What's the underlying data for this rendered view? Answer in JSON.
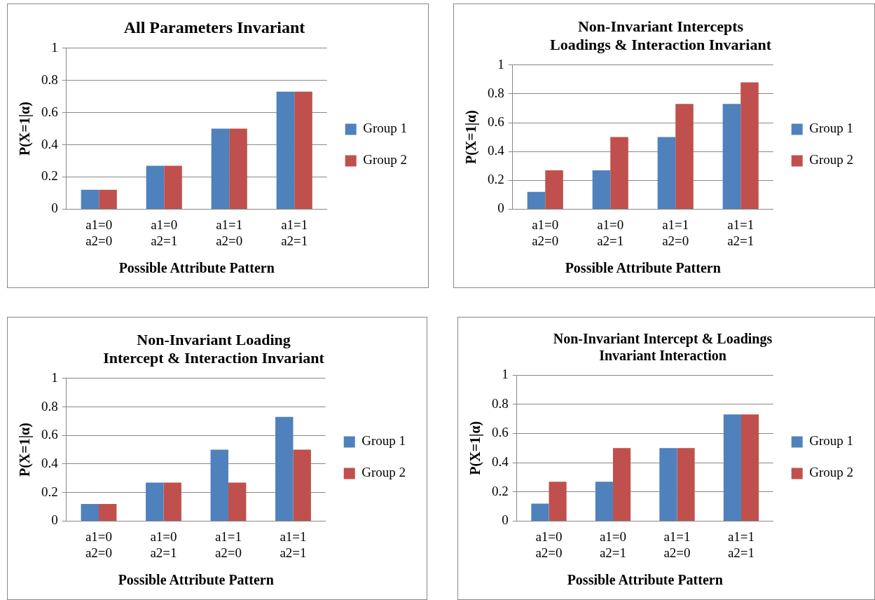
{
  "chart_data": [
    {
      "type": "bar",
      "title": "All Parameters Invariant",
      "xlabel": "Possible Attribute Pattern",
      "ylabel": "P(X=1|α)",
      "categories": [
        "a1=0\na2=0",
        "a1=0\na2=1",
        "a1=1\na2=0",
        "a1=1\na2=1"
      ],
      "series": [
        {
          "name": "Group 1",
          "color": "#4f81bd",
          "values": [
            0.12,
            0.27,
            0.5,
            0.73
          ]
        },
        {
          "name": "Group 2",
          "color": "#c0504d",
          "values": [
            0.12,
            0.27,
            0.5,
            0.73
          ]
        }
      ],
      "ylim": [
        0,
        1
      ],
      "yticks": [
        0,
        0.2,
        0.4,
        0.6,
        0.8,
        1
      ],
      "grid": "y",
      "legend": "right"
    },
    {
      "type": "bar",
      "title": "Non-Invariant Intercepts\nLoadings & Interaction Invariant",
      "xlabel": "Possible Attribute Pattern",
      "ylabel": "P(X=1|α)",
      "categories": [
        "a1=0\na2=0",
        "a1=0\na2=1",
        "a1=1\na2=0",
        "a1=1\na2=1"
      ],
      "series": [
        {
          "name": "Group 1",
          "color": "#4f81bd",
          "values": [
            0.12,
            0.27,
            0.5,
            0.73
          ]
        },
        {
          "name": "Group 2",
          "color": "#c0504d",
          "values": [
            0.27,
            0.5,
            0.73,
            0.88
          ]
        }
      ],
      "ylim": [
        0,
        1
      ],
      "yticks": [
        0,
        0.2,
        0.4,
        0.6,
        0.8,
        1
      ],
      "grid": "y",
      "legend": "right"
    },
    {
      "type": "bar",
      "title": "Non-Invariant Loading\nIntercept & Interaction Invariant",
      "xlabel": "Possible Attribute Pattern",
      "ylabel": "P(X=1|α)",
      "categories": [
        "a1=0\na2=0",
        "a1=0\na2=1",
        "a1=1\na2=0",
        "a1=1\na2=1"
      ],
      "series": [
        {
          "name": "Group 1",
          "color": "#4f81bd",
          "values": [
            0.12,
            0.27,
            0.5,
            0.73
          ]
        },
        {
          "name": "Group 2",
          "color": "#c0504d",
          "values": [
            0.12,
            0.27,
            0.27,
            0.5
          ]
        }
      ],
      "ylim": [
        0,
        1
      ],
      "yticks": [
        0,
        0.2,
        0.4,
        0.6,
        0.8,
        1
      ],
      "grid": "y",
      "legend": "right"
    },
    {
      "type": "bar",
      "title": "Non-Invariant Intercept & Loadings\nInvariant Interaction",
      "xlabel": "Possible Attribute Pattern",
      "ylabel": "P(X=1|α)",
      "categories": [
        "a1=0\na2=0",
        "a1=0\na2=1",
        "a1=1\na2=0",
        "a1=1\na2=1"
      ],
      "series": [
        {
          "name": "Group 1",
          "color": "#4f81bd",
          "values": [
            0.12,
            0.27,
            0.5,
            0.73
          ]
        },
        {
          "name": "Group 2",
          "color": "#c0504d",
          "values": [
            0.27,
            0.5,
            0.5,
            0.73
          ]
        }
      ],
      "ylim": [
        0,
        1
      ],
      "yticks": [
        0,
        0.2,
        0.4,
        0.6,
        0.8,
        1
      ],
      "grid": "y",
      "legend": "right"
    }
  ]
}
